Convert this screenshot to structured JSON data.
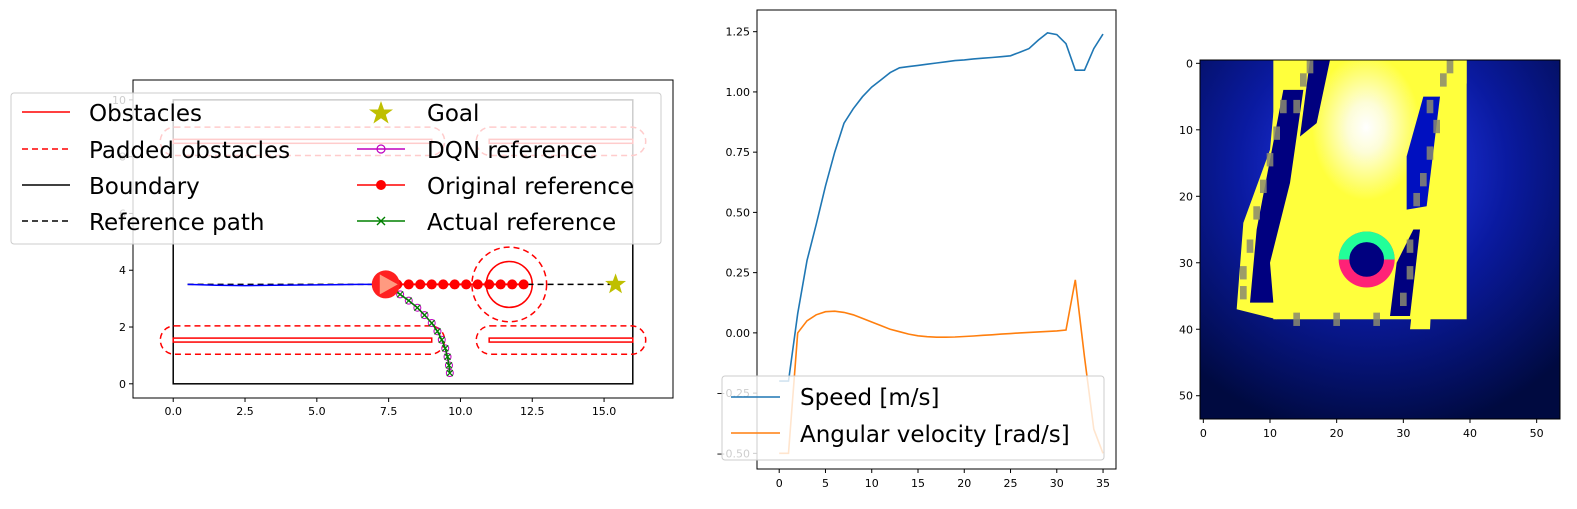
{
  "figure": {
    "panels": [
      "trajectory-map",
      "speed-angular-velocity",
      "occupancy-image"
    ]
  },
  "chart_data": [
    {
      "type": "line",
      "xlim": [
        -1.4,
        17.4
      ],
      "ylim": [
        -0.5,
        10.7
      ],
      "x_ticks": [
        "0.0",
        "2.5",
        "5.0",
        "7.5",
        "10.0",
        "12.5",
        "15.0"
      ],
      "x_tick_values": [
        0,
        2.5,
        5,
        7.5,
        10,
        12.5,
        15
      ],
      "y_ticks": [
        "0",
        "2",
        "4",
        "6",
        "8",
        "10"
      ],
      "y_tick_values": [
        0,
        2,
        4,
        6,
        8,
        10
      ],
      "legend": {
        "placement": "upper-left, two columns",
        "entries": [
          {
            "label": "Obstacles",
            "style": "solid",
            "color": "#ff0000"
          },
          {
            "label": "Padded obstacles",
            "style": "dashed",
            "color": "#ff0000"
          },
          {
            "label": "Boundary",
            "style": "solid",
            "color": "#000000"
          },
          {
            "label": "Reference path",
            "style": "dashed",
            "color": "#000000"
          },
          {
            "label": "Goal",
            "style": "star",
            "color": "#bfbf00"
          },
          {
            "label": "DQN reference",
            "style": "line-open-circle",
            "color": "#bf00bf"
          },
          {
            "label": "Original reference",
            "style": "line-filled-circle",
            "color": "#ff0000"
          },
          {
            "label": "Actual reference",
            "style": "line-x",
            "color": "#008000"
          }
        ]
      },
      "boundary": {
        "x": [
          0,
          16
        ],
        "y": [
          0,
          10
        ]
      },
      "obstacles_rect": [
        {
          "x": [
            0,
            9
          ],
          "y": [
            1.47,
            1.61
          ]
        },
        {
          "x": [
            11,
            16
          ],
          "y": [
            1.47,
            1.61
          ]
        },
        {
          "x": [
            0,
            9
          ],
          "y": [
            8.47,
            8.61
          ]
        },
        {
          "x": [
            11,
            16
          ],
          "y": [
            8.47,
            8.61
          ]
        }
      ],
      "padded_obstacles": [
        {
          "x": [
            -0.45,
            16.45
          ],
          "y": [
            1.04,
            2.04
          ],
          "split": [
            9.45,
            10.55
          ]
        },
        {
          "x": [
            -0.45,
            16.45
          ],
          "y": [
            8.04,
            9.04
          ],
          "split": [
            9.45,
            10.55
          ]
        }
      ],
      "circle_obstacle": {
        "center": [
          11.7,
          3.5
        ],
        "radius": 0.8,
        "padded_radius": 1.3
      },
      "reference_path": {
        "x": [
          0.5,
          15.4
        ],
        "y": [
          3.5,
          3.5
        ]
      },
      "goal": [
        15.4,
        3.5
      ],
      "robot": {
        "position": [
          7.4,
          3.5
        ],
        "heading_deg": 0
      },
      "traveled_path": {
        "color": "#0000ff",
        "x": [
          0.5,
          1.5,
          2.5,
          3.5,
          4.5,
          5.5,
          6.5,
          7.4
        ],
        "y": [
          3.5,
          3.47,
          3.46,
          3.47,
          3.48,
          3.49,
          3.5,
          3.5
        ]
      },
      "original_reference": {
        "x": [
          7.4,
          7.8,
          8.2,
          8.6,
          9.0,
          9.4,
          9.8,
          10.2,
          10.6,
          11.0,
          11.4,
          11.8,
          12.2
        ],
        "y": [
          3.5,
          3.5,
          3.5,
          3.5,
          3.5,
          3.5,
          3.5,
          3.5,
          3.5,
          3.5,
          3.5,
          3.5,
          3.5
        ]
      },
      "dqn_reference": {
        "x": [
          7.6,
          7.9,
          8.2,
          8.5,
          8.75,
          9.0,
          9.2,
          9.35,
          9.47,
          9.55,
          9.6,
          9.63
        ],
        "y": [
          3.35,
          3.15,
          2.93,
          2.68,
          2.42,
          2.14,
          1.85,
          1.55,
          1.25,
          0.95,
          0.65,
          0.38
        ]
      },
      "actual_reference": {
        "x": [
          7.6,
          7.9,
          8.2,
          8.5,
          8.75,
          9.0,
          9.2,
          9.35,
          9.47,
          9.55,
          9.6,
          9.63
        ],
        "y": [
          3.35,
          3.15,
          2.93,
          2.68,
          2.42,
          2.14,
          1.85,
          1.55,
          1.25,
          0.95,
          0.65,
          0.38
        ]
      }
    },
    {
      "type": "line",
      "xlim": [
        -2.4,
        36.4
      ],
      "ylim": [
        -0.565,
        1.34
      ],
      "x_ticks": [
        "0",
        "5",
        "10",
        "15",
        "20",
        "25",
        "30",
        "35"
      ],
      "x_tick_values": [
        0,
        5,
        10,
        15,
        20,
        25,
        30,
        35
      ],
      "y_ticks": [
        "−0.50",
        "−0.25",
        "0.00",
        "0.25",
        "0.50",
        "0.75",
        "1.00",
        "1.25"
      ],
      "y_tick_values": [
        -0.5,
        -0.25,
        0,
        0.25,
        0.5,
        0.75,
        1.0,
        1.25
      ],
      "legend": {
        "placement": "lower-left"
      },
      "series": [
        {
          "name": "Speed [m/s]",
          "color": "#1f77b4",
          "x": [
            0,
            1,
            2,
            3,
            4,
            5,
            6,
            7,
            8,
            9,
            10,
            11,
            12,
            13,
            14,
            15,
            16,
            17,
            18,
            19,
            20,
            21,
            22,
            23,
            24,
            25,
            26,
            27,
            28,
            29,
            30,
            31,
            32,
            33,
            34,
            35
          ],
          "values": [
            -0.2,
            -0.2,
            0.08,
            0.3,
            0.45,
            0.61,
            0.75,
            0.87,
            0.93,
            0.98,
            1.02,
            1.05,
            1.08,
            1.1,
            1.105,
            1.11,
            1.115,
            1.12,
            1.125,
            1.13,
            1.133,
            1.137,
            1.14,
            1.143,
            1.146,
            1.15,
            1.165,
            1.18,
            1.215,
            1.245,
            1.238,
            1.2,
            1.09,
            1.09,
            1.18,
            1.24
          ]
        },
        {
          "name": "Angular velocity [rad/s]",
          "color": "#ff7f0e",
          "x": [
            0,
            1,
            2,
            3,
            4,
            5,
            6,
            7,
            8,
            9,
            10,
            11,
            12,
            13,
            14,
            15,
            16,
            17,
            18,
            19,
            20,
            21,
            22,
            23,
            24,
            25,
            26,
            27,
            28,
            29,
            30,
            31,
            32,
            33,
            34,
            35
          ],
          "values": [
            -0.5,
            -0.5,
            0.0,
            0.05,
            0.075,
            0.088,
            0.09,
            0.085,
            0.075,
            0.06,
            0.045,
            0.03,
            0.015,
            0.005,
            -0.005,
            -0.012,
            -0.016,
            -0.018,
            -0.018,
            -0.017,
            -0.015,
            -0.013,
            -0.01,
            -0.008,
            -0.005,
            -0.003,
            0.0,
            0.002,
            0.004,
            0.006,
            0.008,
            0.012,
            0.22,
            -0.1,
            -0.4,
            -0.5
          ]
        }
      ]
    },
    {
      "type": "heatmap",
      "xlim": [
        -0.5,
        53.5
      ],
      "ylim": [
        53.5,
        -0.5
      ],
      "x_ticks": [
        "0",
        "10",
        "20",
        "30",
        "40",
        "50"
      ],
      "x_tick_values": [
        0,
        10,
        20,
        30,
        40,
        50
      ],
      "y_ticks": [
        "0",
        "10",
        "20",
        "30",
        "40",
        "50"
      ],
      "y_tick_values": [
        0,
        10,
        20,
        30,
        40,
        50
      ],
      "colors": {
        "free_space": "#ffff3c",
        "background": "#000a40",
        "obstacle": "#00007f",
        "robot_front": "#22ff99",
        "robot_back": "#ff2277"
      },
      "regions": {
        "free_space": {
          "x0": 10.5,
          "x1": 39.5,
          "y0": -0.5,
          "y1": 38.5
        },
        "left_wall": {
          "x0": 5,
          "x1": 12,
          "y0": 4,
          "y1": 37
        },
        "right_wall": {
          "x0": 30,
          "x1": 34,
          "y0": 5,
          "y1": 23
        },
        "robot": {
          "cx": 24.5,
          "cy": 29.5,
          "r": 4.2
        }
      }
    }
  ]
}
